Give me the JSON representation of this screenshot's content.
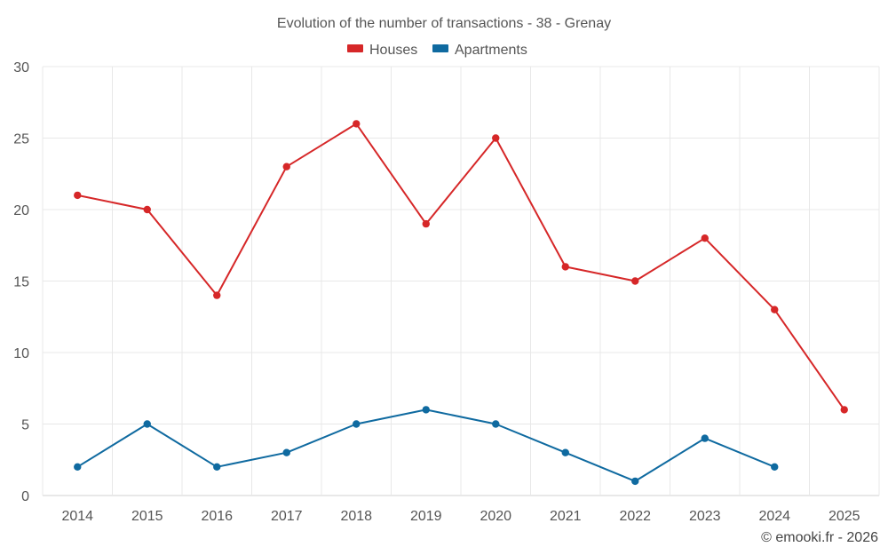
{
  "chart_data": {
    "type": "line",
    "title": "Evolution of the number of transactions - 38 - Grenay",
    "categories": [
      "2014",
      "2015",
      "2016",
      "2017",
      "2018",
      "2019",
      "2020",
      "2021",
      "2022",
      "2023",
      "2024",
      "2025"
    ],
    "y_ticks": [
      "0",
      "5",
      "10",
      "15",
      "20",
      "25",
      "30"
    ],
    "ylim": [
      0,
      30
    ],
    "xlabel": "",
    "ylabel": "",
    "grid": true,
    "legend_position": "top-center",
    "series": [
      {
        "name": "Houses",
        "color": "#d62728",
        "values": [
          21,
          20,
          14,
          23,
          26,
          19,
          25,
          16,
          15,
          18,
          13,
          6
        ]
      },
      {
        "name": "Apartments",
        "color": "#0f6aa0",
        "values": [
          2,
          5,
          2,
          3,
          5,
          6,
          5,
          3,
          1,
          4,
          2,
          null
        ]
      }
    ],
    "credit": "© emooki.fr - 2026"
  }
}
